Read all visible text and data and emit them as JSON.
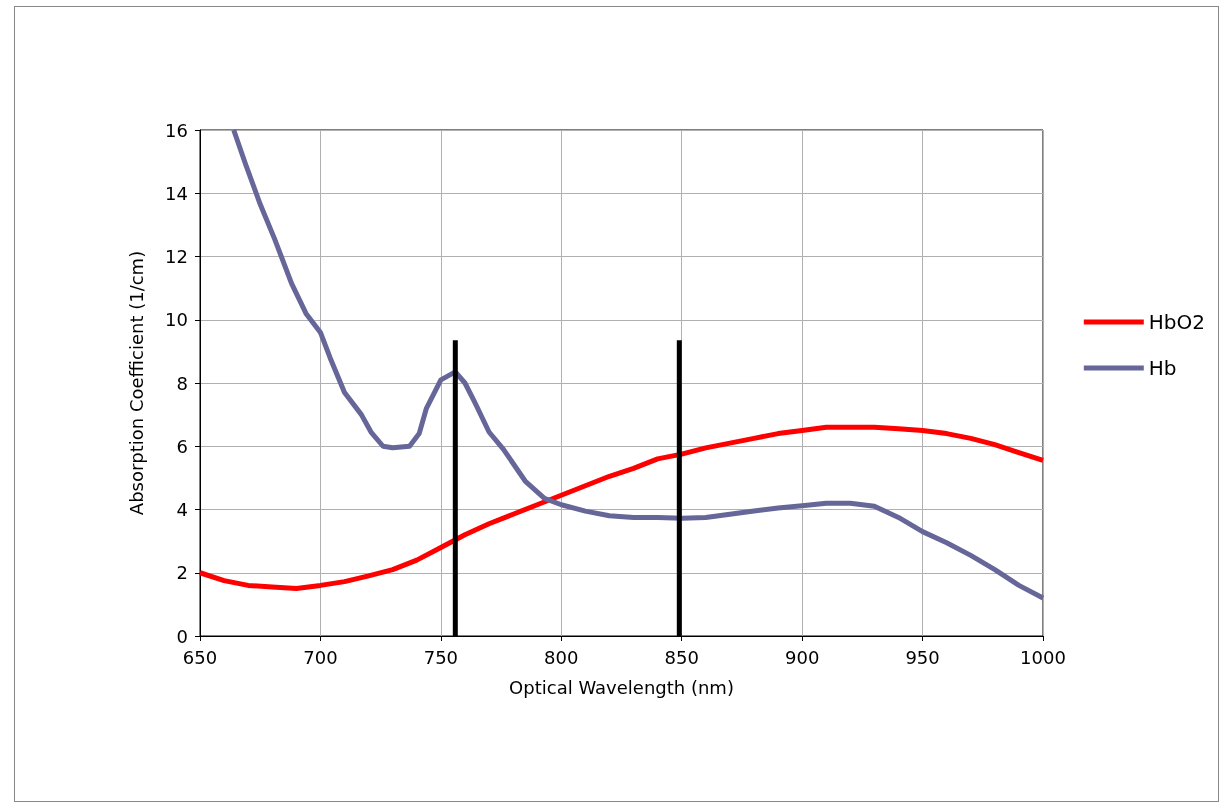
{
  "chart_data": {
    "type": "line",
    "xlabel": "Optical Wavelength (nm)",
    "ylabel": "Absorption Coefficient (1/cm)",
    "xlim": [
      650,
      1000
    ],
    "xticks": [
      650,
      700,
      750,
      800,
      850,
      900,
      950,
      1000
    ],
    "ylim": [
      0,
      16
    ],
    "yticks": [
      0,
      2,
      4,
      6,
      8,
      10,
      12,
      14,
      16
    ],
    "grid": true,
    "legend": "right",
    "marker": "none",
    "line_style": "solid",
    "series": [
      {
        "name": "HbO2",
        "color": "#ff0000",
        "x": [
          650,
          660,
          670,
          680,
          690,
          700,
          710,
          720,
          730,
          740,
          750,
          760,
          770,
          780,
          790,
          800,
          810,
          820,
          830,
          840,
          850,
          860,
          870,
          880,
          890,
          900,
          910,
          920,
          930,
          940,
          950,
          960,
          970,
          980,
          990,
          1000
        ],
        "values": [
          2.0,
          1.75,
          1.6,
          1.55,
          1.5,
          1.6,
          1.72,
          1.9,
          2.1,
          2.4,
          2.8,
          3.2,
          3.55,
          3.85,
          4.15,
          4.45,
          4.75,
          5.05,
          5.3,
          5.6,
          5.75,
          5.95,
          6.1,
          6.25,
          6.4,
          6.5,
          6.6,
          6.6,
          6.6,
          6.55,
          6.5,
          6.4,
          6.25,
          6.05,
          5.8,
          5.55
        ]
      },
      {
        "name": "Hb",
        "color": "#666699",
        "x": [
          664,
          669,
          675,
          681,
          688,
          694,
          700,
          704,
          710,
          717,
          721,
          726,
          730,
          737,
          741,
          744,
          750,
          756,
          760,
          764,
          770,
          776,
          785,
          793,
          800,
          810,
          820,
          830,
          840,
          850,
          860,
          870,
          880,
          890,
          900,
          910,
          920,
          930,
          940,
          950,
          960,
          970,
          980,
          990,
          1000
        ],
        "values": [
          16,
          14.9,
          13.65,
          12.55,
          11.15,
          10.2,
          9.6,
          8.8,
          7.7,
          7.0,
          6.45,
          6.0,
          5.95,
          6.0,
          6.4,
          7.2,
          8.1,
          8.35,
          8.0,
          7.4,
          6.45,
          5.9,
          4.9,
          4.35,
          4.15,
          3.95,
          3.8,
          3.75,
          3.75,
          3.72,
          3.75,
          3.85,
          3.95,
          4.05,
          4.12,
          4.2,
          4.2,
          4.1,
          3.75,
          3.3,
          2.95,
          2.55,
          2.1,
          1.6,
          1.2
        ]
      },
      {
        "color": "#000000",
        "x": [
          756,
          756
        ],
        "values": [
          0,
          9.35
        ]
      },
      {
        "color": "#000000",
        "x": [
          849,
          849
        ],
        "values": [
          0,
          9.35
        ]
      }
    ]
  }
}
